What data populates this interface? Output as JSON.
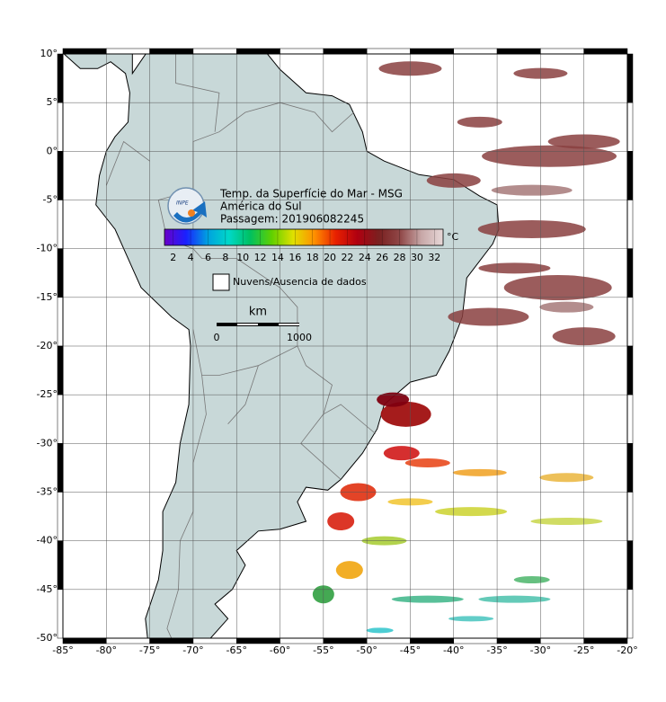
{
  "map": {
    "lonlim": [
      -85,
      -20
    ],
    "latlim": [
      -50,
      10
    ],
    "lon_ticks": [
      {
        "value": -85,
        "label": "-85°"
      },
      {
        "value": -80,
        "label": "-80°"
      },
      {
        "value": -75,
        "label": "-75°"
      },
      {
        "value": -70,
        "label": "-70°"
      },
      {
        "value": -65,
        "label": "-65°"
      },
      {
        "value": -60,
        "label": "-60°"
      },
      {
        "value": -55,
        "label": "-55°"
      },
      {
        "value": -50,
        "label": "-50°"
      },
      {
        "value": -45,
        "label": "-45°"
      },
      {
        "value": -40,
        "label": "-40°"
      },
      {
        "value": -35,
        "label": "-35°"
      },
      {
        "value": -30,
        "label": "-30°"
      },
      {
        "value": -25,
        "label": "-25°"
      },
      {
        "value": -20,
        "label": "-20°"
      }
    ],
    "lat_ticks": [
      {
        "value": 10,
        "label": "10°"
      },
      {
        "value": 5,
        "label": "5°"
      },
      {
        "value": 0,
        "label": "0°"
      },
      {
        "value": -5,
        "label": "-5°"
      },
      {
        "value": -10,
        "label": "-10°"
      },
      {
        "value": -15,
        "label": "-15°"
      },
      {
        "value": -20,
        "label": "-20°"
      },
      {
        "value": -25,
        "label": "-25°"
      },
      {
        "value": -30,
        "label": "-30°"
      },
      {
        "value": -35,
        "label": "-35°"
      },
      {
        "value": -40,
        "label": "-40°"
      },
      {
        "value": -45,
        "label": "-45°"
      },
      {
        "value": -50,
        "label": "-50°"
      }
    ],
    "logo_text": "INPE",
    "title_lines": [
      "Temp. da Superfície do Mar - MSG",
      "América do Sul",
      "Passagem: 201906082245"
    ],
    "colorbar": {
      "unit": "°C",
      "clim": [
        1,
        33
      ],
      "ticks": [
        2,
        4,
        6,
        8,
        10,
        12,
        14,
        16,
        18,
        20,
        22,
        24,
        26,
        28,
        30,
        32
      ],
      "colors": [
        "#6a00c8",
        "#1a20ff",
        "#00a0e0",
        "#00d8c8",
        "#00c060",
        "#60d000",
        "#e0e000",
        "#ff9000",
        "#e82000",
        "#b00010",
        "#7a2020",
        "#904848",
        "#c8a8a8",
        "#e8d8d8"
      ]
    },
    "legend": {
      "label": "Nuvens/Ausencia de dados"
    },
    "scale_bar": {
      "unit": "km",
      "start_label": "0",
      "end_label": "1000"
    }
  }
}
